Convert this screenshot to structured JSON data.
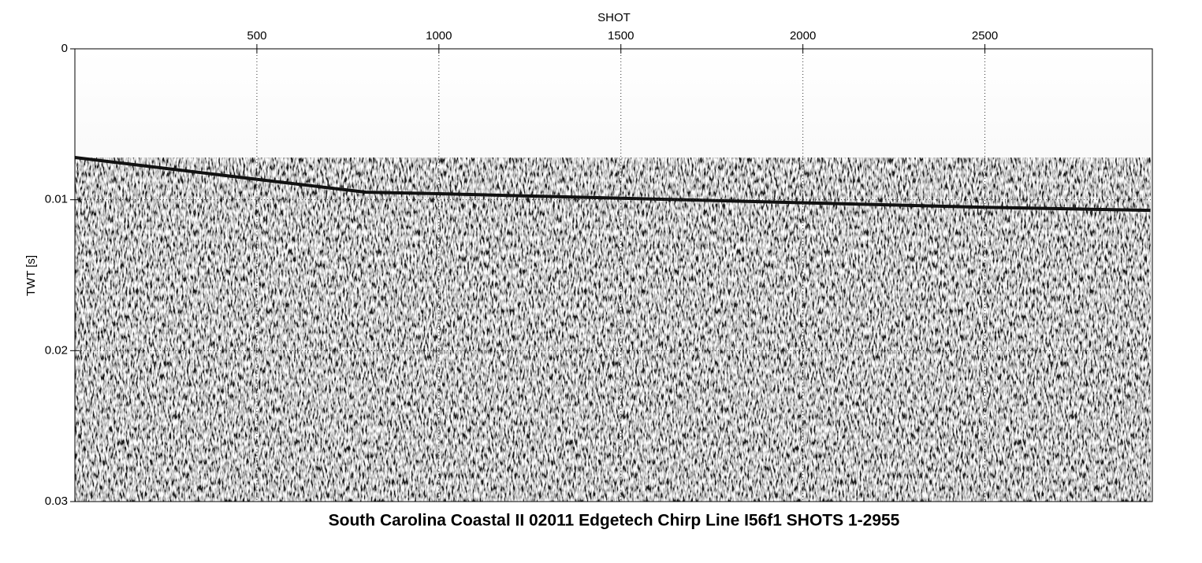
{
  "chart_data": {
    "type": "line",
    "title": "South Carolina Coastal II 02011 Edgetech Chirp Line I56f1 SHOTS 1-2955",
    "xlabel": "SHOT",
    "ylabel": "TWT [s]",
    "xlim": [
      0,
      2960
    ],
    "xticks": [
      500,
      1000,
      1500,
      2000,
      2500
    ],
    "ylim": [
      0.03,
      0
    ],
    "yticks": [
      0,
      0.01,
      0.02,
      0.03
    ],
    "grid": true,
    "series": [
      {
        "color": "#111111",
        "x": [
          0,
          500,
          800,
          1000,
          1500,
          2000,
          2500,
          2955
        ],
        "values": [
          0.0072,
          0.00865,
          0.0095,
          0.0096,
          0.0099,
          0.0102,
          0.0105,
          0.0107
        ]
      }
    ]
  }
}
